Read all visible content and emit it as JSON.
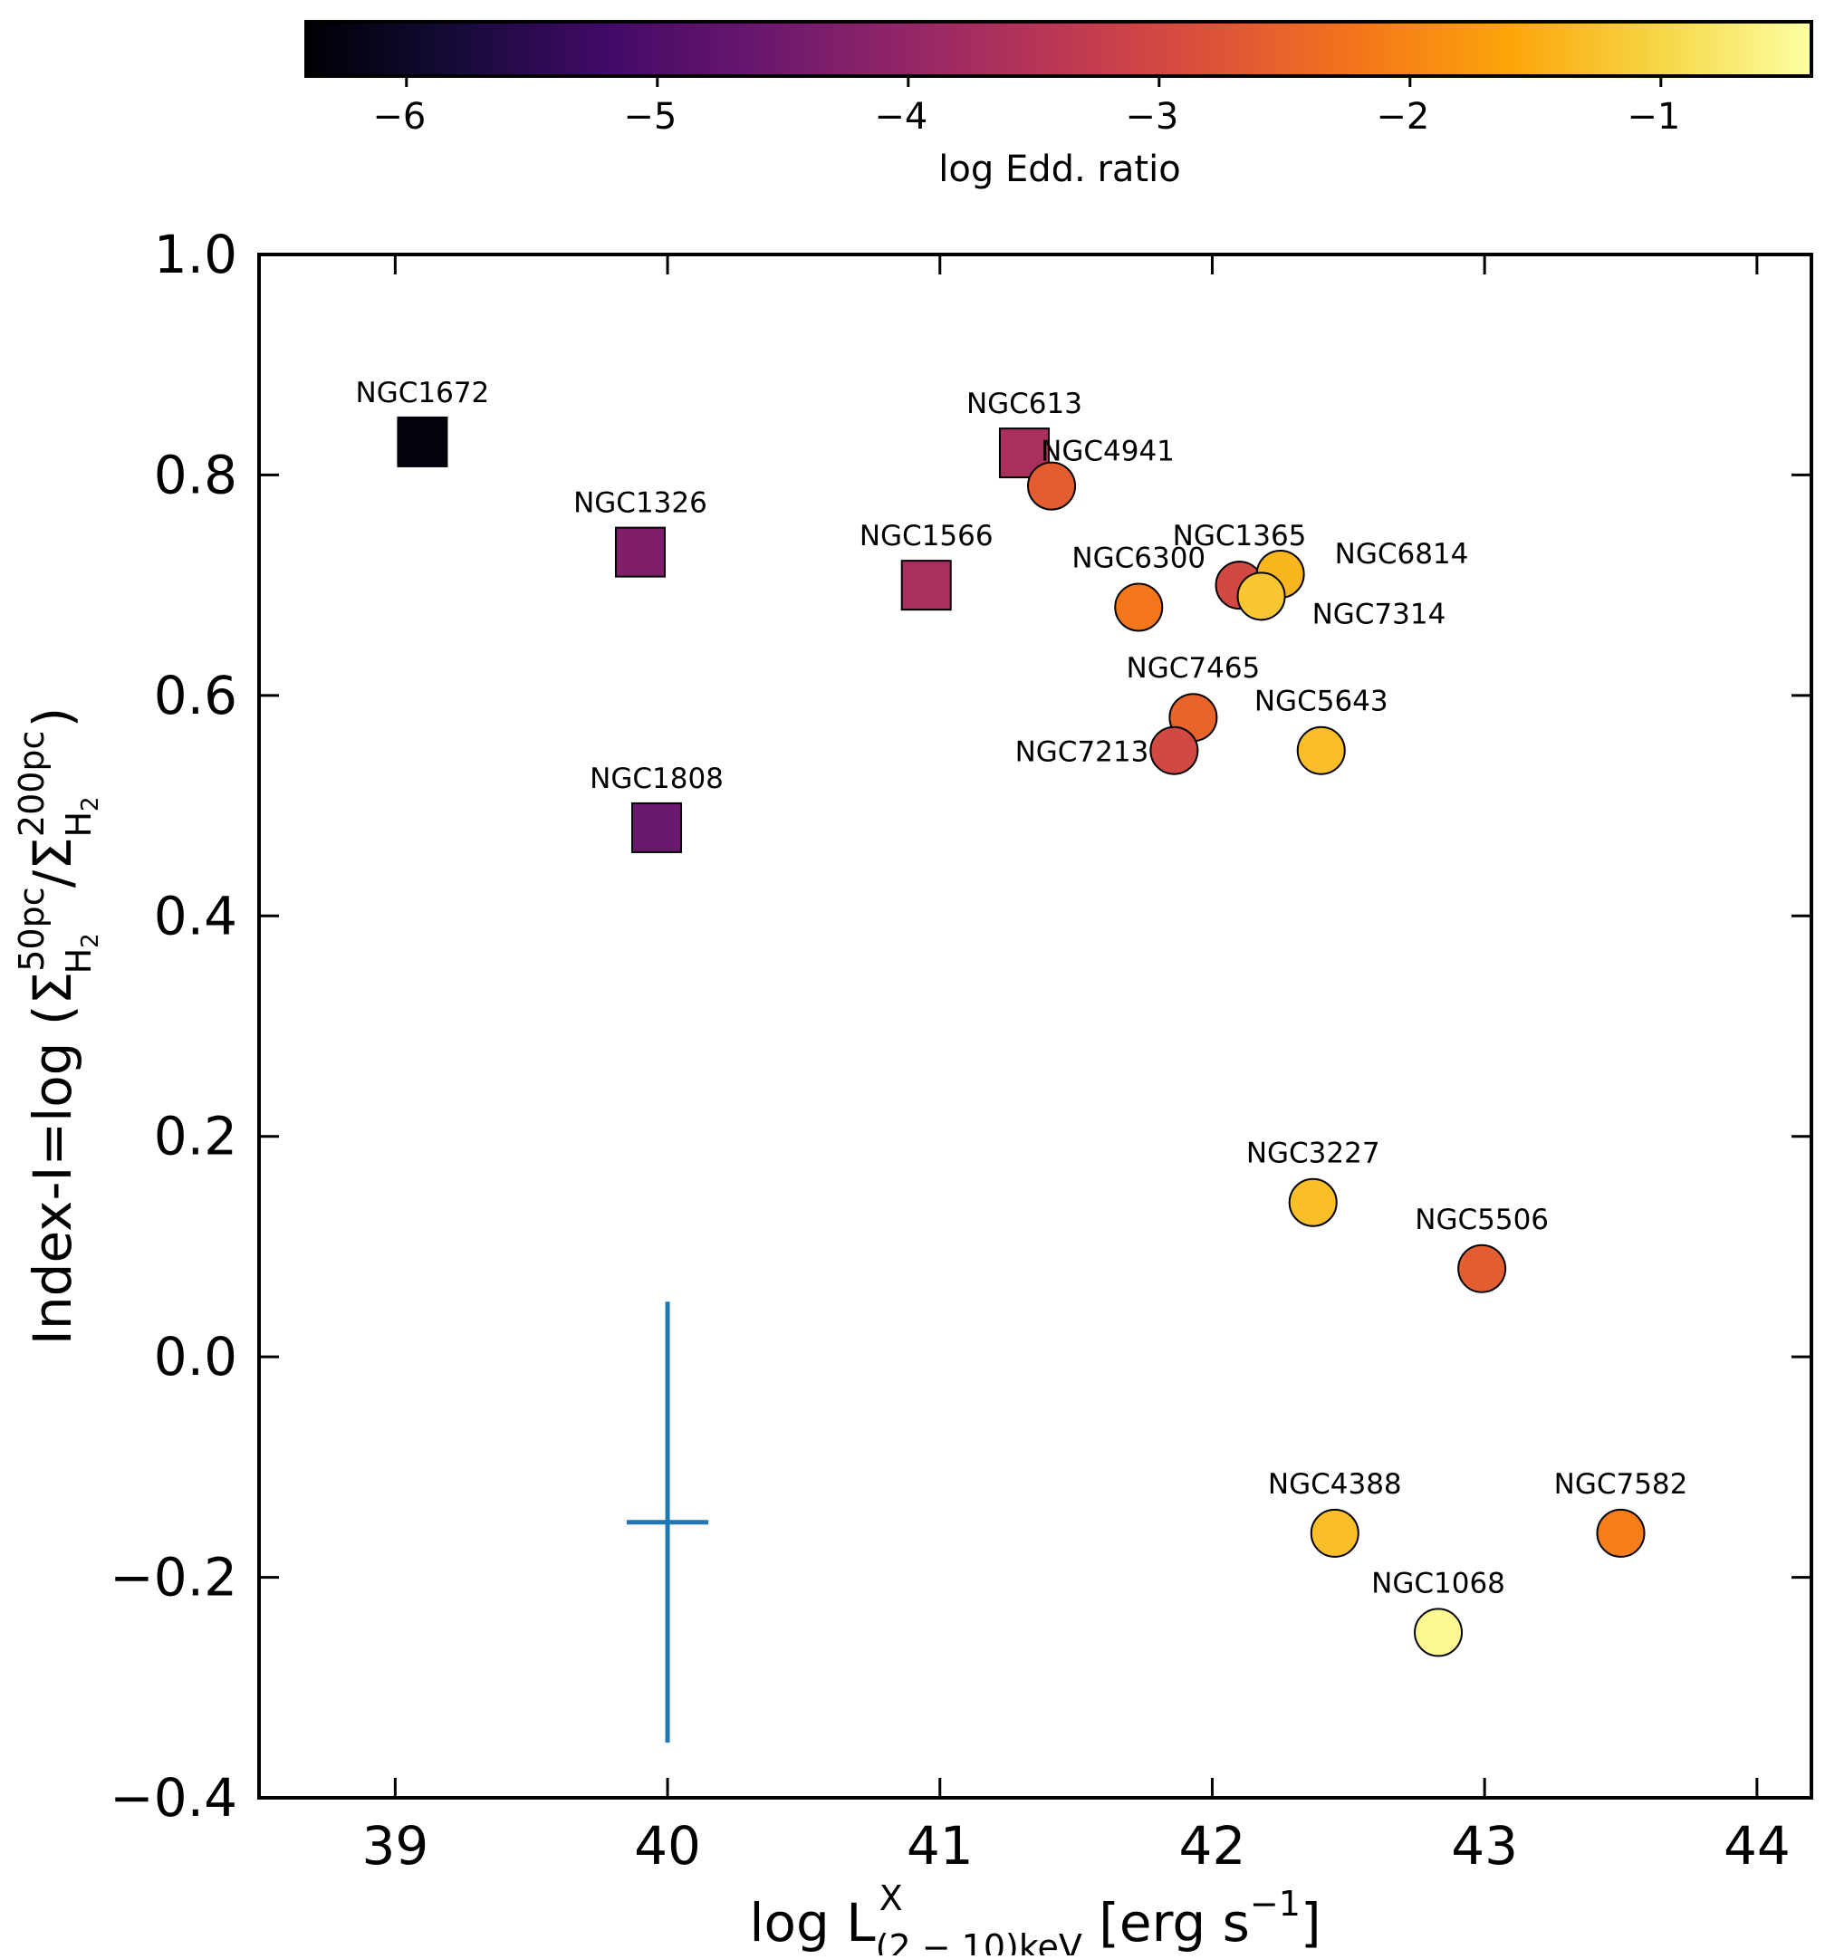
{
  "chart_data": {
    "type": "scatter",
    "xlabel": "log L",
    "xlabel_sup": "X",
    "xlabel_sub": "(2 − 10)keV",
    "xlabel_units": " [erg s",
    "xlabel_units_sup": "−1",
    "xlabel_units_end": "]",
    "ylabel": "Index-I=log (Σ",
    "ylabel_sup1": "50pc",
    "ylabel_sub1": "H",
    "ylabel_subsub1": "2",
    "ylabel_mid": "/Σ",
    "ylabel_sup2": "200pc",
    "ylabel_sub2": "H",
    "ylabel_subsub2": "2",
    "ylabel_end": ")",
    "xlim": [
      38.5,
      44.2
    ],
    "ylim": [
      -0.4,
      1.0
    ],
    "xticks": [
      39,
      40,
      41,
      42,
      43,
      44
    ],
    "xtick_labels": [
      "39",
      "40",
      "41",
      "42",
      "43",
      "44"
    ],
    "yticks": [
      1.0,
      0.8,
      0.6,
      0.4,
      0.2,
      0.0,
      -0.2,
      -0.4
    ],
    "ytick_labels": [
      "1.0",
      "0.8",
      "0.6",
      "0.4",
      "0.2",
      "0.0",
      "−0.2",
      "−0.4"
    ],
    "colorbar": {
      "label": "log Edd. ratio",
      "range": [
        -6.4,
        -0.4
      ],
      "ticks": [
        -6,
        -5,
        -4,
        -3,
        -2,
        -1
      ],
      "tick_labels": [
        "−6",
        "−5",
        "−4",
        "−3",
        "−2",
        "−1"
      ],
      "colormap": "inferno"
    },
    "error_bar": {
      "x": 40.0,
      "y": -0.15,
      "xerr": 0.15,
      "yerr": 0.2,
      "color": "#1f77b4"
    },
    "points": [
      {
        "name": "NGC1672",
        "x": 39.1,
        "y": 0.83,
        "marker": "square",
        "edd": -6.3,
        "label_pos": "above"
      },
      {
        "name": "NGC613",
        "x": 41.31,
        "y": 0.82,
        "marker": "square",
        "edd": -3.7,
        "label_pos": "above"
      },
      {
        "name": "NGC4941",
        "x": 41.41,
        "y": 0.79,
        "marker": "circle",
        "edd": -2.6,
        "label_pos": "above-right"
      },
      {
        "name": "NGC1326",
        "x": 39.9,
        "y": 0.73,
        "marker": "square",
        "edd": -4.3,
        "label_pos": "above"
      },
      {
        "name": "NGC1566",
        "x": 40.95,
        "y": 0.7,
        "marker": "square",
        "edd": -3.7,
        "label_pos": "above"
      },
      {
        "name": "NGC6300",
        "x": 41.73,
        "y": 0.68,
        "marker": "circle",
        "edd": -2.2,
        "label_pos": "above"
      },
      {
        "name": "NGC1365",
        "x": 42.1,
        "y": 0.7,
        "marker": "circle",
        "edd": -3.0,
        "label_pos": "above"
      },
      {
        "name": "NGC6814",
        "x": 42.25,
        "y": 0.71,
        "marker": "circle",
        "edd": -1.4,
        "label_pos": "right"
      },
      {
        "name": "NGC7314",
        "x": 42.18,
        "y": 0.69,
        "marker": "circle",
        "edd": -1.2,
        "label_pos": "right-below"
      },
      {
        "name": "NGC7465",
        "x": 41.93,
        "y": 0.58,
        "marker": "circle",
        "edd": -2.5,
        "label_pos": "above"
      },
      {
        "name": "NGC7213",
        "x": 41.86,
        "y": 0.55,
        "marker": "circle",
        "edd": -3.0,
        "label_pos": "left"
      },
      {
        "name": "NGC5643",
        "x": 42.4,
        "y": 0.55,
        "marker": "circle",
        "edd": -1.3,
        "label_pos": "above"
      },
      {
        "name": "NGC1808",
        "x": 39.96,
        "y": 0.48,
        "marker": "square",
        "edd": -4.6,
        "label_pos": "above"
      },
      {
        "name": "NGC3227",
        "x": 42.37,
        "y": 0.14,
        "marker": "circle",
        "edd": -1.3,
        "label_pos": "above"
      },
      {
        "name": "NGC5506",
        "x": 42.99,
        "y": 0.08,
        "marker": "circle",
        "edd": -2.6,
        "label_pos": "above"
      },
      {
        "name": "NGC4388",
        "x": 42.45,
        "y": -0.16,
        "marker": "circle",
        "edd": -1.3,
        "label_pos": "above"
      },
      {
        "name": "NGC7582",
        "x": 43.5,
        "y": -0.16,
        "marker": "circle",
        "edd": -2.1,
        "label_pos": "above"
      },
      {
        "name": "NGC1068",
        "x": 42.83,
        "y": -0.25,
        "marker": "circle",
        "edd": -0.5,
        "label_pos": "above"
      }
    ]
  }
}
